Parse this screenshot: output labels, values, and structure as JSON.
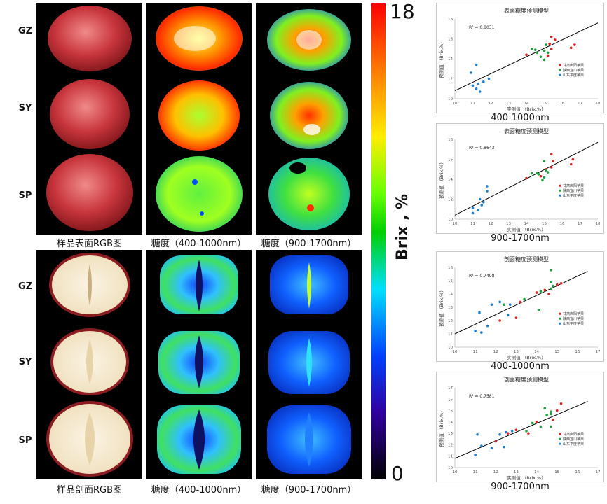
{
  "row_labels": [
    "GZ",
    "SY",
    "SP"
  ],
  "captions": {
    "surface_rgb": "样品表面RGB图",
    "surface_sugar_vnir": "糖度（400-1000nm）",
    "surface_sugar_swir": "糖度（900-1700nm）",
    "section_rgb": "样品剖面RGB图",
    "section_sugar_vnir": "糖度（400-1000nm）",
    "section_sugar_swir": "糖度（900-1700nm）"
  },
  "colorbar": {
    "max": "18",
    "min": "0",
    "label": "Brix , %"
  },
  "colors": {
    "gansu": "#e02020",
    "shaanxi": "#20a040",
    "shandong": "#2080d0",
    "fit_line": "#000000"
  },
  "chart_data": [
    {
      "type": "scatter",
      "title": "表面糖度预测模型",
      "caption": "400-1000nm",
      "r2": "R² = 0.8031",
      "xlabel": "实测值 （Brix,%）",
      "ylabel": "预测值 （Brix,%）",
      "xlim": [
        10,
        18
      ],
      "ylim": [
        10,
        18
      ],
      "xticks": [
        10,
        11,
        12,
        13,
        14,
        15,
        16,
        17,
        18
      ],
      "yticks": [
        10,
        12,
        14,
        16,
        18
      ],
      "fit": [
        [
          10,
          10.8
        ],
        [
          18,
          17.6
        ]
      ],
      "legend": [
        "甘肃庆阳苹果",
        "陕西宜川苹果",
        "山东平度苹果"
      ],
      "series": [
        {
          "name": "甘肃庆阳苹果",
          "color": "#e02020",
          "points": [
            [
              15.4,
              16.2
            ],
            [
              15.6,
              15.9
            ],
            [
              15.3,
              15.5
            ],
            [
              16.7,
              15.4
            ],
            [
              16.5,
              15.1
            ],
            [
              15.4,
              15.0
            ],
            [
              14.0,
              14.4
            ],
            [
              15.2,
              14.3
            ]
          ]
        },
        {
          "name": "陕西宜川苹果",
          "color": "#20a040",
          "points": [
            [
              14.3,
              15.0
            ],
            [
              14.5,
              14.9
            ],
            [
              14.6,
              14.6
            ],
            [
              15.0,
              14.8
            ],
            [
              15.1,
              15.4
            ],
            [
              15.2,
              14.6
            ],
            [
              15.0,
              13.9
            ],
            [
              14.8,
              14.2
            ]
          ]
        },
        {
          "name": "山东平度苹果",
          "color": "#2080d0",
          "points": [
            [
              11.2,
              13.4
            ],
            [
              10.9,
              12.6
            ],
            [
              11.0,
              11.3
            ],
            [
              11.2,
              11.0
            ],
            [
              11.3,
              11.5
            ],
            [
              11.4,
              10.7
            ],
            [
              11.6,
              11.7
            ],
            [
              11.9,
              12.0
            ]
          ]
        }
      ]
    },
    {
      "type": "scatter",
      "title": "表面糖度预测模型",
      "caption": "900-1700nm",
      "r2": "R² = 0.8643",
      "xlabel": "实测值 （Brix,%）",
      "ylabel": "预测值 （Brix,%）",
      "xlim": [
        10,
        18
      ],
      "ylim": [
        10,
        18
      ],
      "xticks": [
        10,
        11,
        12,
        13,
        14,
        15,
        16,
        17,
        18
      ],
      "yticks": [
        10,
        12,
        14,
        16,
        18
      ],
      "fit": [
        [
          10,
          10.4
        ],
        [
          18,
          17.7
        ]
      ],
      "legend": [
        "甘肃庆阳苹果",
        "陕西宜川苹果",
        "山东平度苹果"
      ],
      "series": [
        {
          "name": "甘肃庆阳苹果",
          "color": "#e02020",
          "points": [
            [
              15.4,
              16.5
            ],
            [
              15.5,
              15.8
            ],
            [
              16.6,
              16.0
            ],
            [
              16.5,
              15.5
            ],
            [
              15.1,
              15.0
            ],
            [
              14.0,
              14.1
            ],
            [
              15.4,
              15.2
            ],
            [
              14.8,
              14.3
            ]
          ]
        },
        {
          "name": "陕西宜川苹果",
          "color": "#20a040",
          "points": [
            [
              14.3,
              14.6
            ],
            [
              14.6,
              14.6
            ],
            [
              15.0,
              15.8
            ],
            [
              15.1,
              14.9
            ],
            [
              15.0,
              14.2
            ],
            [
              14.7,
              14.5
            ],
            [
              15.2,
              14.7
            ],
            [
              14.9,
              13.9
            ]
          ]
        },
        {
          "name": "山东平度苹果",
          "color": "#2080d0",
          "points": [
            [
              11.8,
              13.3
            ],
            [
              11.8,
              12.8
            ],
            [
              11.4,
              12.0
            ],
            [
              11.5,
              11.4
            ],
            [
              11.0,
              11.1
            ],
            [
              11.3,
              10.9
            ],
            [
              11.0,
              10.6
            ],
            [
              11.6,
              11.7
            ]
          ]
        }
      ]
    },
    {
      "type": "scatter",
      "title": "剖面糖度预测模型",
      "caption": "400-1000nm",
      "r2": "R² = 0.7498",
      "xlabel": "实测值 （Brix,%）",
      "ylabel": "预测值 （Brix,%）",
      "xlim": [
        10,
        17
      ],
      "ylim": [
        10,
        16
      ],
      "xticks": [
        10,
        11,
        12,
        13,
        14,
        15,
        16,
        17
      ],
      "yticks": [
        10,
        11,
        12,
        13,
        14,
        15,
        16
      ],
      "fit": [
        [
          10,
          11.0
        ],
        [
          16.5,
          15.7
        ]
      ],
      "legend": [
        "甘肃庆阳苹果",
        "陕西宜川苹果",
        "山东平度苹果"
      ],
      "series": [
        {
          "name": "甘肃庆阳苹果",
          "color": "#e02020",
          "points": [
            [
              14.0,
              14.1
            ],
            [
              14.4,
              14.3
            ],
            [
              14.6,
              14.0
            ],
            [
              15.0,
              14.7
            ],
            [
              15.2,
              14.8
            ],
            [
              13.2,
              13.4
            ],
            [
              12.2,
              12.0
            ],
            [
              13.0,
              12.2
            ]
          ]
        },
        {
          "name": "陕西宜川苹果",
          "color": "#20a040",
          "points": [
            [
              14.7,
              15.8
            ],
            [
              14.7,
              14.9
            ],
            [
              14.8,
              14.6
            ],
            [
              14.2,
              14.2
            ],
            [
              14.1,
              12.8
            ],
            [
              12.4,
              13.2
            ],
            [
              13.4,
              13.6
            ],
            [
              14.7,
              14.4
            ]
          ]
        },
        {
          "name": "山东平度苹果",
          "color": "#2080d0",
          "points": [
            [
              11.2,
              12.6
            ],
            [
              11.0,
              11.2
            ],
            [
              11.3,
              11.1
            ],
            [
              11.8,
              13.2
            ],
            [
              12.2,
              13.4
            ],
            [
              12.6,
              12.4
            ],
            [
              12.7,
              13.2
            ],
            [
              11.6,
              11.6
            ]
          ]
        }
      ]
    },
    {
      "type": "scatter",
      "title": "剖面糖度预测模型",
      "caption": "900-1700nm",
      "r2": "R² = 0.7581",
      "xlabel": "实测值 （Brix,%）",
      "ylabel": "预测值 （Brix,%）",
      "xlim": [
        10,
        17
      ],
      "ylim": [
        10,
        17
      ],
      "xticks": [
        10,
        11,
        12,
        13,
        14,
        15,
        16,
        17
      ],
      "yticks": [
        10,
        11,
        12,
        13,
        14,
        15,
        16,
        17
      ],
      "fit": [
        [
          10,
          10.8
        ],
        [
          16.5,
          15.8
        ]
      ],
      "legend": [
        "甘肃庆阳苹果",
        "陕西宜川苹果",
        "山东平度苹果"
      ],
      "series": [
        {
          "name": "甘肃庆阳苹果",
          "color": "#e02020",
          "points": [
            [
              15.2,
              15.6
            ],
            [
              15.0,
              15.0
            ],
            [
              14.0,
              14.0
            ],
            [
              13.0,
              13.3
            ],
            [
              12.6,
              13.0
            ],
            [
              12.0,
              12.3
            ],
            [
              14.8,
              14.2
            ],
            [
              13.6,
              13.0
            ]
          ]
        },
        {
          "name": "陕西宜川苹果",
          "color": "#20a040",
          "points": [
            [
              14.4,
              15.2
            ],
            [
              14.7,
              14.7
            ],
            [
              14.7,
              14.9
            ],
            [
              14.2,
              13.6
            ],
            [
              14.7,
              13.6
            ],
            [
              13.8,
              13.9
            ],
            [
              13.5,
              13.2
            ],
            [
              14.5,
              14.6
            ]
          ]
        },
        {
          "name": "山东平度苹果",
          "color": "#2080d0",
          "points": [
            [
              11.1,
              12.9
            ],
            [
              11.3,
              11.9
            ],
            [
              11.8,
              11.7
            ],
            [
              12.2,
              12.9
            ],
            [
              12.5,
              13.1
            ],
            [
              12.4,
              11.8
            ],
            [
              11.0,
              11.1
            ],
            [
              12.8,
              13.2
            ]
          ]
        }
      ]
    }
  ]
}
